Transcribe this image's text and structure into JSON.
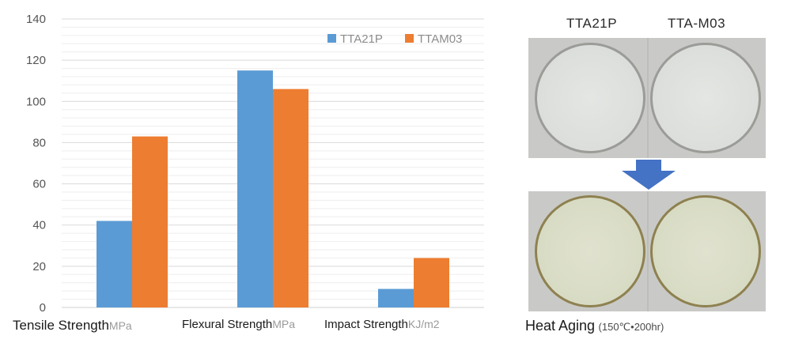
{
  "chart_data": {
    "type": "bar",
    "categories": [
      "Tensile Strength",
      "Flexural Strength",
      "Impact Strength"
    ],
    "category_units": [
      "MPa",
      "MPa",
      "KJ/m2"
    ],
    "series": [
      {
        "name": "TTA21P",
        "color": "#5b9bd5",
        "values": [
          42,
          115,
          9
        ]
      },
      {
        "name": "TTAM03",
        "color": "#ed7d31",
        "values": [
          83,
          106,
          24
        ]
      }
    ],
    "ylim": [
      0,
      140
    ],
    "yticks": [
      0,
      20,
      40,
      60,
      80,
      100,
      120,
      140
    ],
    "grid": true,
    "legend_position": "top-right"
  },
  "photos": {
    "column_labels": [
      "TTA21P",
      "TTA-M03"
    ],
    "arrow_icon": "down-arrow-icon",
    "caption_main": "Heat Aging",
    "caption_condition": "(150℃•200hr)"
  }
}
